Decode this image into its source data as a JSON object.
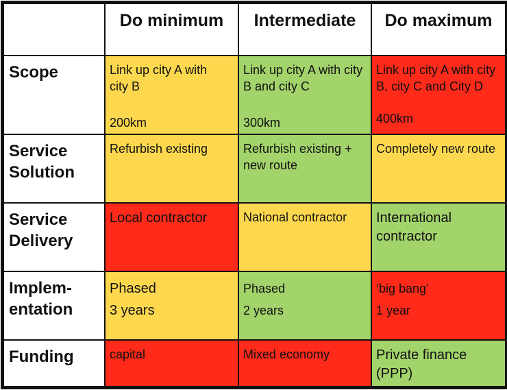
{
  "colors": {
    "yellow": "#FDD84F",
    "green": "#A3D36B",
    "red": "#FF2A1A"
  },
  "columns": [
    "Do minimum",
    "Intermediate",
    "Do maximum"
  ],
  "rows": [
    {
      "label": "Scope",
      "cells": [
        {
          "text": "Link up city A with city B",
          "distance": "200km",
          "color": "yellow"
        },
        {
          "text": "Link up city A with city B and city C",
          "distance": "300km",
          "color": "green"
        },
        {
          "text": "Link up city A with city B, city C and City D",
          "distance": "400km",
          "color": "red"
        }
      ]
    },
    {
      "label": "Service Solution",
      "cells": [
        {
          "text": "Refurbish existing",
          "color": "yellow"
        },
        {
          "text": "Refurbish existing + new route",
          "color": "green"
        },
        {
          "text": "Completely new route",
          "color": "yellow"
        }
      ]
    },
    {
      "label": "Service Delivery",
      "cells": [
        {
          "text": "Local contractor",
          "color": "red"
        },
        {
          "text": "National contractor",
          "color": "yellow"
        },
        {
          "text": "International contractor",
          "color": "green"
        }
      ]
    },
    {
      "label": "Implem-entation",
      "label_lines": [
        "Implem-",
        "entation"
      ],
      "cells": [
        {
          "line1": "Phased",
          "line2": "3 years",
          "color": "yellow"
        },
        {
          "line1": "Phased",
          "line2": "2 years",
          "color": "green"
        },
        {
          "line1": "‘big bang’",
          "line2": "1 year",
          "color": "red"
        }
      ]
    },
    {
      "label": "Funding",
      "cells": [
        {
          "text": "capital",
          "color": "red"
        },
        {
          "text": "Mixed economy",
          "color": "red"
        },
        {
          "text": "Private finance (PPP)",
          "color": "green"
        }
      ]
    }
  ]
}
